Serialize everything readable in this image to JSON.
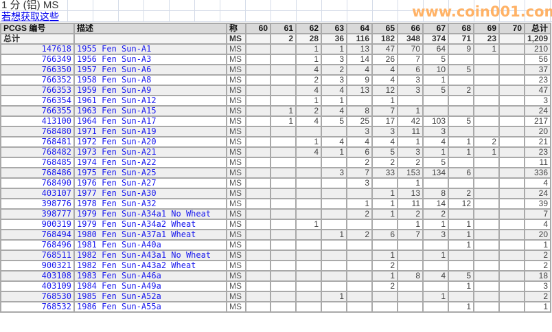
{
  "page": {
    "title": "1 分 (铝) MS",
    "link": "若想获取这些"
  },
  "table": {
    "headers": {
      "pcgs": "PCGS 编号",
      "desc": "描述",
      "grade": "称",
      "grades": [
        "60",
        "61",
        "62",
        "63",
        "64",
        "65",
        "66",
        "67",
        "68",
        "69",
        "70"
      ],
      "total": "总计"
    },
    "summary": {
      "label": "总计",
      "grade": "MS",
      "counts": [
        "",
        "2",
        "28",
        "36",
        "116",
        "182",
        "348",
        "374",
        "71",
        "23",
        ""
      ],
      "total": "1,209"
    },
    "rows": [
      {
        "id": "147618",
        "desc": "1955 Fen Sun-A1",
        "grade": "MS",
        "counts": [
          "",
          "",
          "1",
          "1",
          "13",
          "47",
          "70",
          "64",
          "9",
          "1",
          ""
        ],
        "total": "210"
      },
      {
        "id": "766349",
        "desc": "1956 Fen Sun-A3",
        "grade": "MS",
        "counts": [
          "",
          "",
          "1",
          "3",
          "14",
          "26",
          "7",
          "5",
          "",
          "",
          ""
        ],
        "total": "56"
      },
      {
        "id": "766350",
        "desc": "1957 Fen Sun-A6",
        "grade": "MS",
        "counts": [
          "",
          "",
          "4",
          "2",
          "4",
          "4",
          "6",
          "10",
          "5",
          "",
          ""
        ],
        "total": "37"
      },
      {
        "id": "766352",
        "desc": "1958 Fen Sun-A8",
        "grade": "MS",
        "counts": [
          "",
          "",
          "2",
          "3",
          "9",
          "4",
          "3",
          "1",
          "",
          "",
          ""
        ],
        "total": "23"
      },
      {
        "id": "766353",
        "desc": "1959 Fen Sun-A9",
        "grade": "MS",
        "counts": [
          "",
          "",
          "4",
          "4",
          "13",
          "12",
          "3",
          "5",
          "2",
          "",
          ""
        ],
        "total": "47"
      },
      {
        "id": "766354",
        "desc": "1961 Fen Sun-A12",
        "grade": "MS",
        "counts": [
          "",
          "",
          "1",
          "1",
          "",
          "1",
          "",
          "",
          "",
          "",
          ""
        ],
        "total": "3"
      },
      {
        "id": "766355",
        "desc": "1963 Fen Sun-A15",
        "grade": "MS",
        "counts": [
          "",
          "1",
          "2",
          "4",
          "8",
          "7",
          "1",
          "",
          "",
          "",
          ""
        ],
        "total": "24"
      },
      {
        "id": "413100",
        "desc": "1964 Fen Sun-A17",
        "grade": "MS",
        "counts": [
          "",
          "1",
          "4",
          "5",
          "25",
          "17",
          "42",
          "103",
          "5",
          "",
          ""
        ],
        "total": "217"
      },
      {
        "id": "768480",
        "desc": "1971 Fen Sun-A19",
        "grade": "MS",
        "counts": [
          "",
          "",
          "",
          "",
          "3",
          "3",
          "11",
          "3",
          "",
          "",
          ""
        ],
        "total": "20"
      },
      {
        "id": "768481",
        "desc": "1972 Fen Sun-A20",
        "grade": "MS",
        "counts": [
          "",
          "",
          "1",
          "4",
          "4",
          "4",
          "1",
          "4",
          "1",
          "2",
          ""
        ],
        "total": "21"
      },
      {
        "id": "768482",
        "desc": "1973 Fen Sun-A21",
        "grade": "MS",
        "counts": [
          "",
          "",
          "4",
          "1",
          "6",
          "5",
          "3",
          "1",
          "1",
          "1",
          ""
        ],
        "total": "23"
      },
      {
        "id": "768485",
        "desc": "1974 Fen Sun-A22",
        "grade": "MS",
        "counts": [
          "",
          "",
          "",
          "",
          "2",
          "2",
          "2",
          "5",
          "",
          "",
          ""
        ],
        "total": "11"
      },
      {
        "id": "768486",
        "desc": "1975 Fen Sun-A25",
        "grade": "MS",
        "counts": [
          "",
          "",
          "",
          "3",
          "7",
          "33",
          "153",
          "134",
          "6",
          "",
          ""
        ],
        "total": "336"
      },
      {
        "id": "768490",
        "desc": "1976 Fen Sun-A27",
        "grade": "MS",
        "counts": [
          "",
          "",
          "",
          "",
          "3",
          "",
          "1",
          "",
          "",
          "",
          ""
        ],
        "total": "4"
      },
      {
        "id": "403107",
        "desc": "1977 Fen Sun-A30",
        "grade": "MS",
        "counts": [
          "",
          "",
          "",
          "",
          "",
          "1",
          "13",
          "8",
          "2",
          "",
          ""
        ],
        "total": "24"
      },
      {
        "id": "398776",
        "desc": "1978 Fen Sun-A32",
        "grade": "MS",
        "counts": [
          "",
          "",
          "",
          "",
          "1",
          "1",
          "11",
          "14",
          "12",
          "",
          ""
        ],
        "total": "39"
      },
      {
        "id": "398777",
        "desc": "1979 Fen Sun-A34a1 No Wheat",
        "grade": "MS",
        "counts": [
          "",
          "",
          "",
          "",
          "2",
          "1",
          "2",
          "2",
          "",
          "",
          ""
        ],
        "total": "7"
      },
      {
        "id": "900319",
        "desc": "1979 Fen Sun-A34a2 Wheat",
        "grade": "MS",
        "counts": [
          "",
          "",
          "1",
          "",
          "",
          "",
          "1",
          "1",
          "1",
          "",
          ""
        ],
        "total": "4"
      },
      {
        "id": "768494",
        "desc": "1980 Fen Sun-A37a1 Wheat",
        "grade": "MS",
        "counts": [
          "",
          "",
          "",
          "1",
          "2",
          "6",
          "7",
          "3",
          "1",
          "",
          ""
        ],
        "total": "20"
      },
      {
        "id": "768496",
        "desc": "1981 Fen Sun-A40a",
        "grade": "MS",
        "counts": [
          "",
          "",
          "",
          "",
          "",
          "",
          "",
          "",
          "1",
          "",
          ""
        ],
        "total": "1"
      },
      {
        "id": "768511",
        "desc": "1982 Fen Sun-A43a1 No Wheat",
        "grade": "MS",
        "counts": [
          "",
          "",
          "",
          "",
          "",
          "1",
          "",
          "1",
          "",
          "",
          ""
        ],
        "total": "2"
      },
      {
        "id": "900321",
        "desc": "1982 Fen Sun-A43a2 Wheat",
        "grade": "MS",
        "counts": [
          "",
          "",
          "",
          "",
          "",
          "2",
          "",
          "",
          "",
          "",
          ""
        ],
        "total": "2"
      },
      {
        "id": "403108",
        "desc": "1983 Fen Sun-A46a",
        "grade": "MS",
        "counts": [
          "",
          "",
          "",
          "",
          "",
          "1",
          "8",
          "4",
          "5",
          "",
          ""
        ],
        "total": "18"
      },
      {
        "id": "403109",
        "desc": "1984 Fen Sun-A49a",
        "grade": "MS",
        "counts": [
          "",
          "",
          "",
          "",
          "",
          "2",
          "",
          "",
          "1",
          "",
          ""
        ],
        "total": "3"
      },
      {
        "id": "768530",
        "desc": "1985 Fen Sun-A52a",
        "grade": "MS",
        "counts": [
          "",
          "",
          "",
          "1",
          "",
          "",
          "",
          "1",
          "",
          "",
          ""
        ],
        "total": "2"
      },
      {
        "id": "768532",
        "desc": "1986 Fen Sun-A55a",
        "grade": "MS",
        "counts": [
          "",
          "",
          "",
          "",
          "",
          "",
          "",
          "",
          "1",
          "",
          ""
        ],
        "total": "1"
      }
    ]
  },
  "watermark": "www.coin001.com",
  "colors": {
    "link": "#0000ee",
    "header_bg": "#d9d9d9",
    "grid": "#a9a9a9",
    "watermark": "#ffb266"
  }
}
